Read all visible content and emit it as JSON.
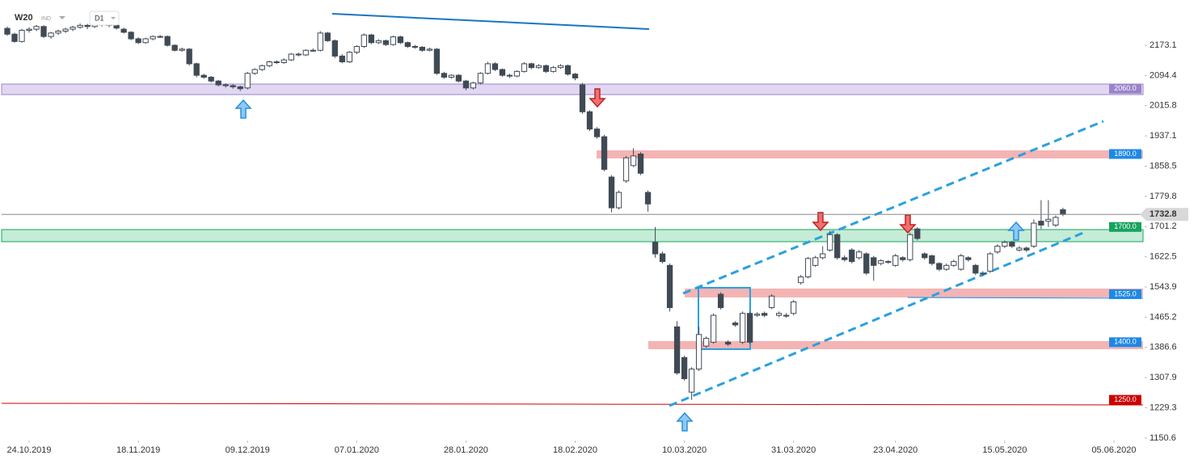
{
  "chart_data": {
    "type": "candlestick",
    "symbol": "W20",
    "market": "IND",
    "timeframe": "D1",
    "xlim": [
      -1,
      156
    ],
    "ylim": [
      1144,
      2291
    ],
    "xticks": [
      {
        "value": 3,
        "label": "24.10.2019"
      },
      {
        "value": 18,
        "label": "18.11.2019"
      },
      {
        "value": 33,
        "label": "09.12.2019"
      },
      {
        "value": 48,
        "label": "07.01.2020"
      },
      {
        "value": 63,
        "label": "28.01.2020"
      },
      {
        "value": 78,
        "label": "18.02.2020"
      },
      {
        "value": 93,
        "label": "10.03.2020"
      },
      {
        "value": 108,
        "label": "31.03.2020"
      },
      {
        "value": 122,
        "label": "23.04.2020"
      },
      {
        "value": 137,
        "label": "15.05.2020"
      },
      {
        "value": 152,
        "label": "05.06.2020"
      }
    ],
    "yticks": [
      2173.1,
      2094.4,
      2015.8,
      1937.1,
      1858.5,
      1779.8,
      1701.2,
      1622.5,
      1543.9,
      1465.2,
      1386.6,
      1307.9,
      1229.3,
      1150.6
    ],
    "up_color": "#ffffff",
    "down_color": "#404a55",
    "last": 1732.8,
    "levels": [
      {
        "value": 2060,
        "label": "2060.0",
        "color": "#9a84c9"
      },
      {
        "value": 1890,
        "label": "1890.0",
        "color": "#1e88e5"
      },
      {
        "value": 1700,
        "label": "1700.0",
        "color": "#17a35e"
      },
      {
        "value": 1525,
        "label": "1525.0",
        "color": "#1e88e5"
      },
      {
        "value": 1400,
        "label": "1400.0",
        "color": "#1e88e5"
      },
      {
        "value": 1250,
        "label": "1250.0",
        "color": "#cc0000"
      }
    ],
    "open": [
      2217,
      2202,
      2183,
      2212,
      2215,
      2222,
      2196,
      2205,
      2210,
      2215,
      2220,
      2225,
      2222,
      2228,
      2230,
      2225,
      2215,
      2207,
      2190,
      2180,
      2190,
      2196,
      2196,
      2173,
      2160,
      2163,
      2125,
      2095,
      2090,
      2080,
      2070,
      2068,
      2065,
      2062,
      2100,
      2110,
      2120,
      2130,
      2128,
      2135,
      2150,
      2148,
      2160,
      2160,
      2205,
      2185,
      2145,
      2130,
      2155,
      2170,
      2200,
      2180,
      2185,
      2175,
      2195,
      2180,
      2170,
      2168,
      2160,
      2163,
      2100,
      2090,
      2095,
      2080,
      2062,
      2075,
      2100,
      2125,
      2110,
      2095,
      2093,
      2105,
      2125,
      2115,
      2120,
      2105,
      2115,
      2120,
      2098,
      2070,
      2000,
      1955,
      1935,
      1830,
      1750,
      1820,
      1860,
      1890,
      1790,
      1660,
      1630,
      1600,
      1440,
      1360,
      1270,
      1330,
      1390,
      1400,
      1525,
      1400,
      1450,
      1400,
      1475,
      1470,
      1475,
      1490,
      1470,
      1470,
      1475,
      1555,
      1570,
      1600,
      1620,
      1640,
      1680,
      1620,
      1640,
      1620,
      1630,
      1620,
      1605,
      1610,
      1600,
      1620,
      1615,
      1695,
      1630,
      1625,
      1605,
      1590,
      1600,
      1590,
      1620,
      1600,
      1580,
      1585,
      1635,
      1650,
      1660,
      1640,
      1645,
      1650,
      1715,
      1715,
      1705,
      1745
    ],
    "high": [
      2222,
      2206,
      2216,
      2220,
      2226,
      2225,
      2208,
      2214,
      2219,
      2224,
      2230,
      2229,
      2233,
      2236,
      2233,
      2228,
      2219,
      2210,
      2194,
      2193,
      2199,
      2200,
      2199,
      2176,
      2167,
      2166,
      2128,
      2099,
      2093,
      2083,
      2074,
      2072,
      2068,
      2104,
      2113,
      2123,
      2133,
      2134,
      2139,
      2153,
      2154,
      2163,
      2165,
      2210,
      2208,
      2188,
      2150,
      2158,
      2173,
      2204,
      2203,
      2189,
      2188,
      2198,
      2198,
      2183,
      2174,
      2171,
      2167,
      2166,
      2104,
      2098,
      2098,
      2083,
      2078,
      2103,
      2130,
      2129,
      2113,
      2099,
      2108,
      2129,
      2128,
      2124,
      2123,
      2119,
      2124,
      2123,
      2101,
      2075,
      2004,
      1960,
      1940,
      1835,
      1795,
      1885,
      1905,
      1895,
      1795,
      1700,
      1636,
      1605,
      1455,
      1365,
      1335,
      1440,
      1415,
      1475,
      1530,
      1405,
      1455,
      1480,
      1480,
      1478,
      1480,
      1525,
      1480,
      1476,
      1510,
      1575,
      1622,
      1625,
      1650,
      1690,
      1684,
      1626,
      1645,
      1640,
      1634,
      1625,
      1616,
      1614,
      1630,
      1624,
      1685,
      1700,
      1634,
      1628,
      1608,
      1605,
      1615,
      1630,
      1624,
      1604,
      1585,
      1635,
      1655,
      1665,
      1664,
      1650,
      1649,
      1720,
      1770,
      1770,
      1730,
      1750
    ],
    "low": [
      2198,
      2180,
      2180,
      2206,
      2210,
      2192,
      2190,
      2200,
      2205,
      2210,
      2216,
      2215,
      2218,
      2222,
      2220,
      2214,
      2204,
      2186,
      2176,
      2177,
      2186,
      2192,
      2170,
      2157,
      2156,
      2120,
      2090,
      2086,
      2076,
      2066,
      2063,
      2060,
      2054,
      2058,
      2096,
      2106,
      2116,
      2124,
      2125,
      2132,
      2144,
      2145,
      2156,
      2157,
      2182,
      2140,
      2126,
      2127,
      2150,
      2166,
      2176,
      2176,
      2171,
      2172,
      2176,
      2166,
      2164,
      2156,
      2157,
      2096,
      2086,
      2086,
      2076,
      2056,
      2058,
      2071,
      2097,
      2106,
      2091,
      2088,
      2090,
      2102,
      2111,
      2112,
      2101,
      2102,
      2112,
      2094,
      2082,
      1995,
      1950,
      1930,
      1845,
      1738,
      1746,
      1815,
      1856,
      1835,
      1740,
      1620,
      1605,
      1480,
      1315,
      1300,
      1250,
      1325,
      1385,
      1396,
      1485,
      1390,
      1440,
      1395,
      1395,
      1466,
      1465,
      1486,
      1465,
      1464,
      1470,
      1550,
      1566,
      1596,
      1615,
      1636,
      1615,
      1610,
      1605,
      1615,
      1575,
      1560,
      1600,
      1604,
      1596,
      1610,
      1610,
      1665,
      1615,
      1600,
      1585,
      1586,
      1596,
      1586,
      1610,
      1575,
      1572,
      1580,
      1630,
      1645,
      1645,
      1636,
      1635,
      1645,
      1695,
      1700,
      1700,
      1728
    ],
    "close": [
      2202,
      2183,
      2212,
      2215,
      2222,
      2196,
      2205,
      2210,
      2215,
      2220,
      2225,
      2222,
      2228,
      2230,
      2225,
      2218,
      2207,
      2190,
      2180,
      2190,
      2196,
      2196,
      2173,
      2160,
      2163,
      2125,
      2095,
      2090,
      2080,
      2070,
      2068,
      2065,
      2060,
      2100,
      2110,
      2120,
      2130,
      2128,
      2135,
      2150,
      2148,
      2160,
      2160,
      2205,
      2185,
      2145,
      2130,
      2155,
      2170,
      2200,
      2180,
      2185,
      2175,
      2195,
      2180,
      2170,
      2168,
      2160,
      2163,
      2100,
      2090,
      2095,
      2080,
      2062,
      2075,
      2100,
      2125,
      2110,
      2095,
      2093,
      2105,
      2125,
      2115,
      2120,
      2105,
      2115,
      2120,
      2098,
      2088,
      2000,
      1955,
      1935,
      1850,
      1750,
      1790,
      1880,
      1885,
      1840,
      1760,
      1630,
      1610,
      1490,
      1320,
      1305,
      1330,
      1420,
      1410,
      1470,
      1490,
      1395,
      1445,
      1475,
      1400,
      1473,
      1470,
      1520,
      1475,
      1470,
      1505,
      1570,
      1618,
      1620,
      1630,
      1680,
      1620,
      1615,
      1610,
      1635,
      1580,
      1600,
      1612,
      1608,
      1625,
      1615,
      1680,
      1670,
      1620,
      1605,
      1590,
      1600,
      1610,
      1625,
      1615,
      1580,
      1578,
      1630,
      1650,
      1660,
      1650,
      1645,
      1640,
      1710,
      1705,
      1720,
      1725,
      1732.8
    ]
  }
}
